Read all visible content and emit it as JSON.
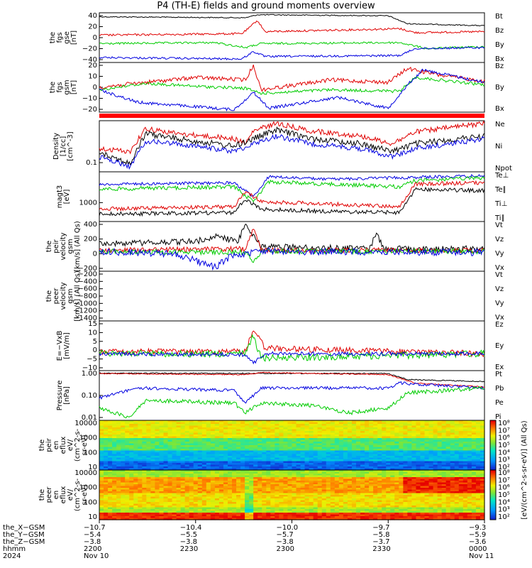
{
  "chart_data": {
    "title": "P4 (TH-E) fields and ground moments overview",
    "type": "line",
    "panels": [
      {
        "ylabel": [
          "the",
          "fgs",
          "gse",
          "[nT]"
        ],
        "yticks": [
          "40",
          "20",
          "0",
          "−20",
          "−40"
        ],
        "ylim": [
          -45,
          57
        ],
        "legend": [
          {
            "name": "Bt",
            "color": "#000000"
          },
          {
            "name": "Bz",
            "color": "#e00000"
          },
          {
            "name": "By",
            "color": "#00cc00"
          },
          {
            "name": "Bx",
            "color": "#0000e0"
          }
        ]
      },
      {
        "ylabel": [
          "the",
          "fgs",
          "gsm",
          "[nT]"
        ],
        "yticks": [
          "20",
          "10",
          "0",
          "−10",
          "−20"
        ],
        "ylim": [
          -27,
          22
        ],
        "legend": [
          {
            "name": "Bz",
            "color": "#e00000"
          },
          {
            "name": "By",
            "color": "#00cc00"
          },
          {
            "name": "Bx",
            "color": "#0000e0"
          }
        ]
      },
      {
        "ylabel": [
          "Density",
          "[1/cc]",
          "[cm^-3]"
        ],
        "yticks": [
          "0.1"
        ],
        "scale": "log",
        "legend": [
          {
            "name": "Ne",
            "color": "#e00000"
          },
          {
            "name": "Ni",
            "color": "#000000"
          },
          {
            "name": "Npot",
            "color": "#0000e0"
          }
        ]
      },
      {
        "ylabel": [
          "magt3",
          "[eV]"
        ],
        "yticks": [
          "1000"
        ],
        "scale": "log",
        "legend": [
          {
            "name": "Te⊥",
            "color": "#e00000"
          },
          {
            "name": "Te∥",
            "color": "#000000"
          },
          {
            "name": "Ti⊥",
            "color": "#e00000"
          },
          {
            "name": "Ti∥",
            "color": "#00cc00"
          }
        ]
      },
      {
        "ylabel": [
          "the",
          "peir",
          "velocity",
          "gsm",
          "[km/s] (All Qs)"
        ],
        "yticks": [
          "400",
          "200",
          "0",
          "−200"
        ],
        "ylim": [
          -260,
          420
        ],
        "legend": [
          {
            "name": "Vt",
            "color": "#000000"
          },
          {
            "name": "Vz",
            "color": "#e00000"
          },
          {
            "name": "Vy",
            "color": "#00cc00"
          },
          {
            "name": "Vx",
            "color": "#0000e0"
          }
        ]
      },
      {
        "ylabel": [
          "the",
          "peer",
          "velocity",
          "gsm",
          "[km/s] (All Qs)"
        ],
        "yticks": [
          "−200",
          "−400",
          "−600",
          "−800",
          "−1000",
          "−1200",
          "−1400"
        ],
        "legend": [
          {
            "name": "Vt",
            "color": "#000000"
          },
          {
            "name": "Vz",
            "color": "#e00000"
          },
          {
            "name": "Vy",
            "color": "#00cc00"
          },
          {
            "name": "Vx",
            "color": "#0000e0"
          }
        ]
      },
      {
        "ylabel": [
          "E=−VxB",
          "[mV/m]"
        ],
        "yticks": [
          "15",
          "10",
          "5",
          "0",
          "−5",
          "−10"
        ],
        "ylim": [
          -11,
          19
        ],
        "legend": [
          {
            "name": "Ez",
            "color": "#e00000"
          },
          {
            "name": "Ey",
            "color": "#00cc00"
          },
          {
            "name": "Ex",
            "color": "#0000e0"
          }
        ]
      },
      {
        "ylabel": [
          "Pressure",
          "[nPa]"
        ],
        "yticks": [
          "1.00",
          "0.10",
          "0.01"
        ],
        "scale": "log",
        "legend": [
          {
            "name": "Pt",
            "color": "#000000"
          },
          {
            "name": "Pb",
            "color": "#e00000"
          },
          {
            "name": "Pe",
            "color": "#00cc00"
          },
          {
            "name": "Pi",
            "color": "#0000e0"
          }
        ]
      },
      {
        "type": "heatmap",
        "ylabel": [
          "the",
          "peir",
          "en",
          "eflux",
          "eV/",
          "(cm^2-s-",
          "sr-eV)"
        ],
        "yticks": [
          "10000",
          "1000",
          "100",
          "10"
        ]
      },
      {
        "type": "heatmap",
        "ylabel": [
          "the",
          "peer",
          "en",
          "eflux",
          "eV/",
          "(cm^2-s-",
          "sr-eV)"
        ],
        "yticks": [
          "10000",
          "1000",
          "100",
          "10"
        ]
      }
    ],
    "colorbar_label": "[eV/(cm^2-s-sr-eV)] (All Qs)",
    "colorbar_ticks_top": [
      "10⁸",
      "10⁷",
      "10⁶",
      "10⁵",
      "10⁴",
      "10³",
      "10²"
    ],
    "colorbar_ticks_bottom": [
      "10⁸",
      "10⁷",
      "10⁶",
      "10⁵",
      "10⁴",
      "10³",
      "10²"
    ],
    "x_axis": {
      "row_labels": [
        "the_X−GSM",
        "the_Y−GSM",
        "the_Z−GSM",
        "hhmm",
        "2024"
      ],
      "columns": [
        {
          "vals": [
            "−10.7",
            "−5.4",
            "−3.8",
            "2200",
            "Nov 10"
          ]
        },
        {
          "vals": [
            "−10.4",
            "−5.5",
            "−3.8",
            "2230",
            ""
          ]
        },
        {
          "vals": [
            "−10.0",
            "−5.7",
            "−3.8",
            "2300",
            ""
          ]
        },
        {
          "vals": [
            "−9.7",
            "−5.8",
            "−3.7",
            "2330",
            ""
          ]
        },
        {
          "vals": [
            "−9.3",
            "−5.9",
            "−3.6",
            "0000",
            "Nov 11"
          ]
        }
      ]
    }
  }
}
